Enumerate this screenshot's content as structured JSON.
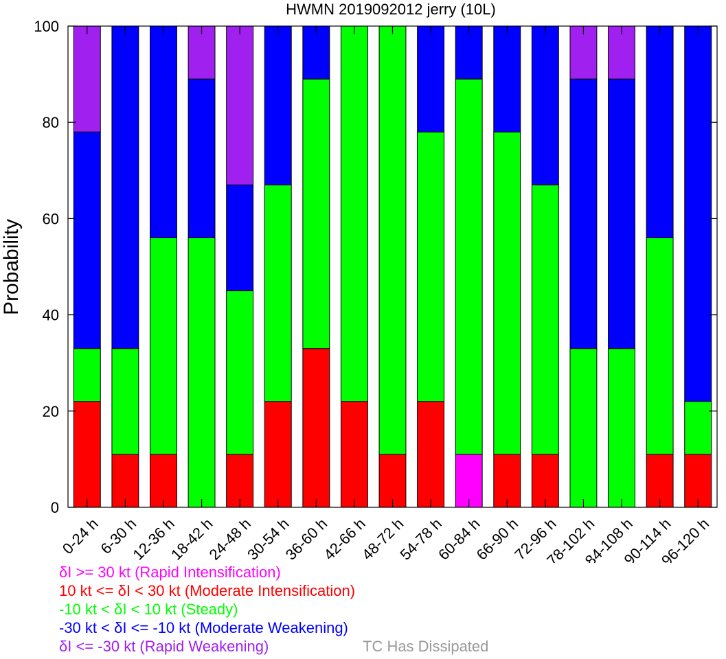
{
  "chart_data": {
    "type": "bar",
    "stacked": true,
    "title": "HWMN 2019092012 jerry (10L)",
    "ylabel": "Probability",
    "xlabel": "",
    "ylim": [
      0,
      100
    ],
    "yticks": [
      0,
      20,
      40,
      60,
      80,
      100
    ],
    "categories": [
      "0-24 h",
      "6-30 h",
      "12-36 h",
      "18-42 h",
      "24-48 h",
      "30-54 h",
      "36-60 h",
      "42-66 h",
      "48-72 h",
      "54-78 h",
      "60-84 h",
      "66-90 h",
      "72-96 h",
      "78-102 h",
      "84-108 h",
      "90-114 h",
      "96-120 h"
    ],
    "series": [
      {
        "key": "ri",
        "color": "#ff00ff",
        "values": [
          0,
          0,
          0,
          0,
          0,
          0,
          0,
          0,
          0,
          0,
          11,
          0,
          0,
          0,
          0,
          0,
          0
        ]
      },
      {
        "key": "mi",
        "color": "#ff0000",
        "values": [
          22,
          11,
          11,
          0,
          11,
          22,
          33,
          22,
          11,
          22,
          0,
          11,
          11,
          0,
          0,
          11,
          11
        ]
      },
      {
        "key": "steady",
        "color": "#00ff00",
        "values": [
          11,
          22,
          45,
          56,
          34,
          45,
          56,
          78,
          89,
          56,
          78,
          67,
          56,
          33,
          33,
          45,
          11
        ]
      },
      {
        "key": "mw",
        "color": "#0000ff",
        "values": [
          45,
          67,
          44,
          33,
          22,
          33,
          11,
          0,
          0,
          22,
          11,
          22,
          33,
          56,
          56,
          44,
          78
        ]
      },
      {
        "key": "rw",
        "color": "#a020f0",
        "values": [
          22,
          0,
          0,
          11,
          33,
          0,
          0,
          0,
          0,
          0,
          0,
          0,
          0,
          11,
          11,
          0,
          0
        ]
      }
    ]
  },
  "legend": [
    {
      "text": "δI >= 30 kt (Rapid Intensification)",
      "color": "#ff00ff"
    },
    {
      "text": "10 kt <= δI < 30 kt (Moderate Intensification)",
      "color": "#ff0000"
    },
    {
      "text": "-10 kt < δI < 10 kt (Steady)",
      "color": "#00ff00"
    },
    {
      "text": "-30 kt < δI <= -10 kt (Moderate Weakening)",
      "color": "#0000ff"
    },
    {
      "text": "δI <= -30 kt (Rapid Weakening)",
      "color": "#a020f0"
    }
  ],
  "dissipated_label": {
    "text": "TC Has Dissipated",
    "color": "#999999"
  }
}
